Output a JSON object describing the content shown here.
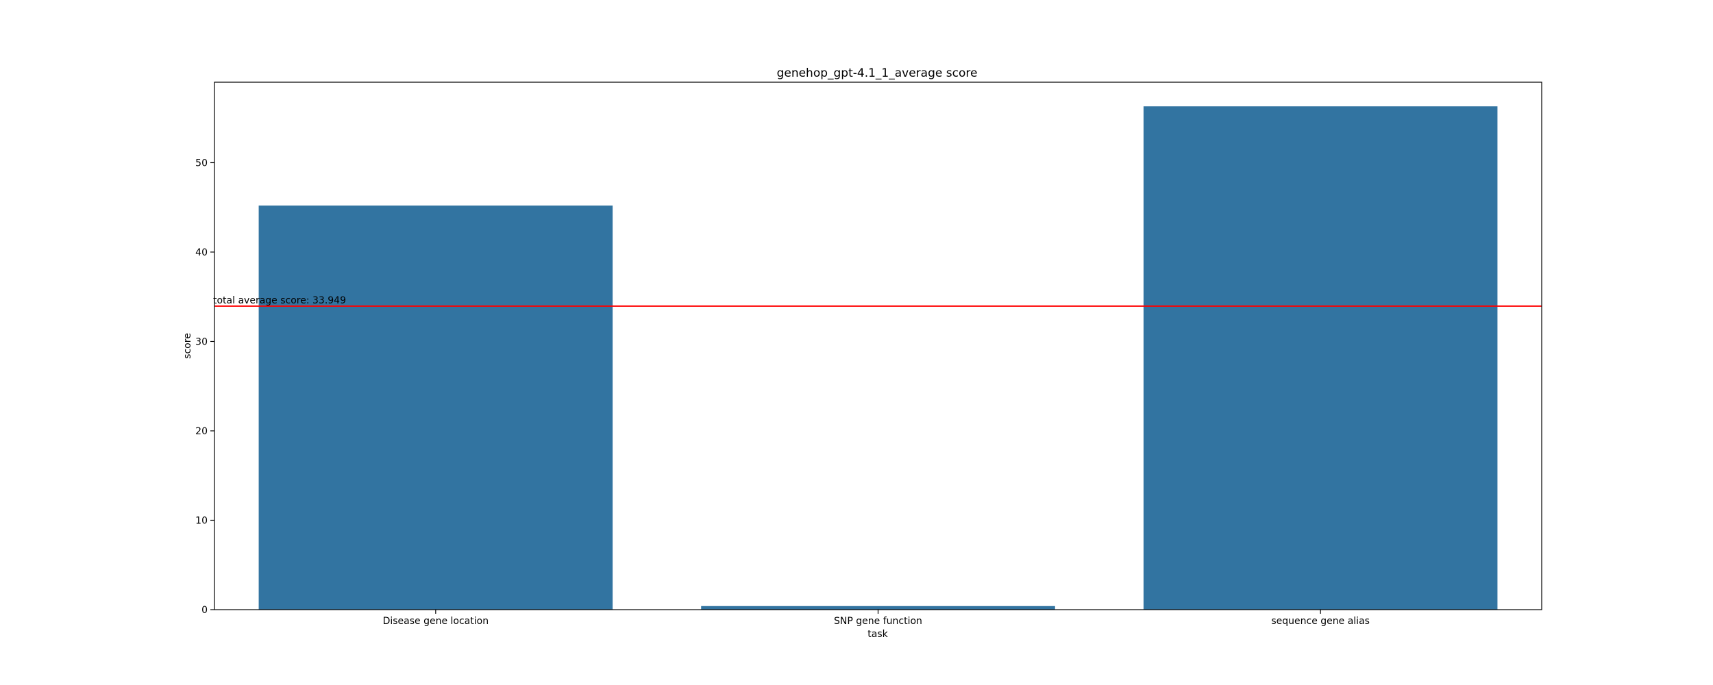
{
  "chart_data": {
    "type": "bar",
    "title": "genehop_gpt-4.1_1_average score",
    "xlabel": "task",
    "ylabel": "score",
    "categories": [
      "Disease gene location",
      "SNP gene function",
      "sequence gene alias"
    ],
    "values": [
      45.2,
      0.4,
      56.3
    ],
    "ylim": [
      0,
      59
    ],
    "yticks": [
      0,
      10,
      20,
      30,
      40,
      50
    ],
    "grid": false,
    "legend": "none",
    "bar_color": "#3274a1",
    "reference_line": {
      "value": 33.949,
      "label": "total average score: 33.949",
      "color": "#ff0000"
    }
  }
}
